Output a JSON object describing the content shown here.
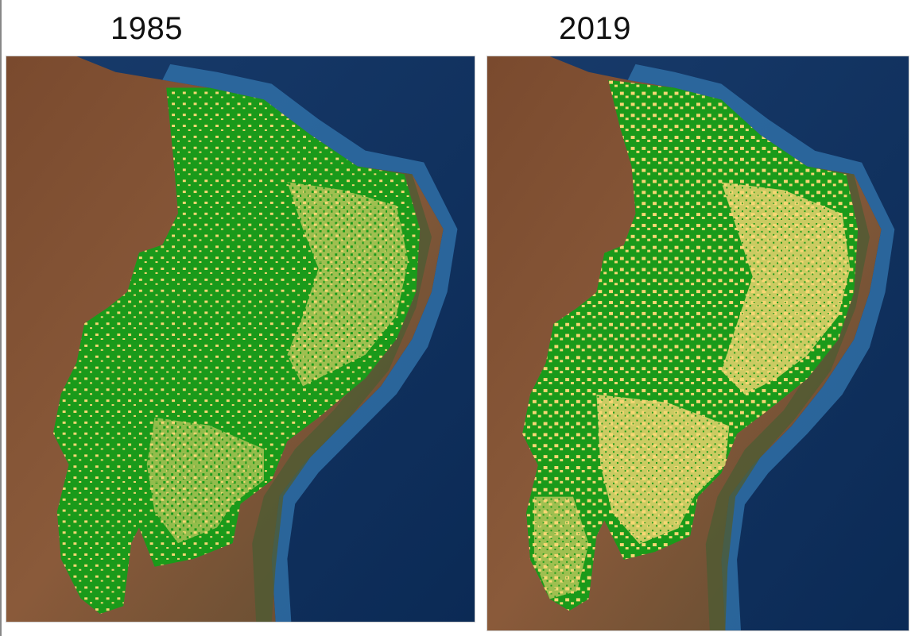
{
  "maps": [
    {
      "year_label": "1985"
    },
    {
      "year_label": "2019"
    }
  ],
  "colors": {
    "forest": "#1a9a1a",
    "non_forest": "#f7d774",
    "ocean_deep": "#0b2a55",
    "ocean_shelf": "#2f6fa6",
    "land_dry": "#8a5a3a",
    "land_green": "#4f5b33"
  },
  "legend_meaning": {
    "forest": "green",
    "non_forest": "yellow"
  }
}
